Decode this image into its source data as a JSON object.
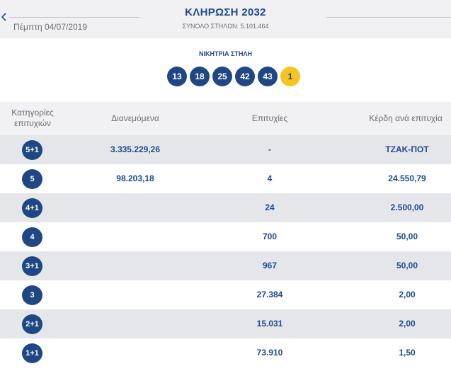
{
  "header": {
    "date": "Πέμπτη 04/07/2019",
    "title": "ΚΛΗΡΩΣΗ 2032",
    "subtitle": "ΣΥΝΟΛΟ ΣΤΗΛΩΝ: 5.101.464"
  },
  "winning": {
    "title": "ΝΙΚΗΤΡΙΑ ΣΤΗΛΗ",
    "numbers": [
      "13",
      "18",
      "25",
      "42",
      "43"
    ],
    "joker": "1",
    "colors": {
      "ball": "#1f4784",
      "joker": "#f4c521"
    }
  },
  "table": {
    "headers": {
      "category": "Κατηγορίες επιτυχιών",
      "distributed": "Διανεμόμενα",
      "winners": "Επιτυχίες",
      "prize": "Κέρδη ανά επιτυχία"
    },
    "rows": [
      {
        "category": "5+1",
        "distributed": "3.335.229,26",
        "winners": "-",
        "prize": "ΤΖΑΚ-ΠΟΤ"
      },
      {
        "category": "5",
        "distributed": "98.203,18",
        "winners": "4",
        "prize": "24.550,79"
      },
      {
        "category": "4+1",
        "distributed": "",
        "winners": "24",
        "prize": "2.500,00"
      },
      {
        "category": "4",
        "distributed": "",
        "winners": "700",
        "prize": "50,00"
      },
      {
        "category": "3+1",
        "distributed": "",
        "winners": "967",
        "prize": "50,00"
      },
      {
        "category": "3",
        "distributed": "",
        "winners": "27.384",
        "prize": "2,00"
      },
      {
        "category": "2+1",
        "distributed": "",
        "winners": "15.031",
        "prize": "2,00"
      },
      {
        "category": "1+1",
        "distributed": "",
        "winners": "73.910",
        "prize": "1,50"
      }
    ]
  },
  "icons": {
    "back": "chevron-left-icon"
  }
}
